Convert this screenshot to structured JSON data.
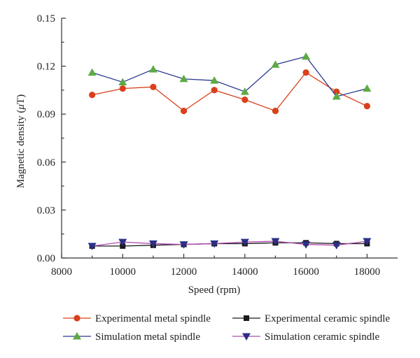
{
  "chart_data": {
    "type": "line",
    "xlabel": "Speed (rpm)",
    "ylabel_prefix": "Magnetic density (",
    "ylabel_unit_italic": "μ",
    "ylabel_suffix": "T)",
    "xlim": [
      8000,
      19000
    ],
    "ylim": [
      0,
      0.15
    ],
    "xticks": [
      8000,
      10000,
      12000,
      14000,
      16000,
      18000
    ],
    "xtick_labels": [
      "8000",
      "10000",
      "12000",
      "14000",
      "16000",
      "18000"
    ],
    "yticks": [
      0,
      0.03,
      0.06,
      0.09,
      0.12,
      0.15
    ],
    "ytick_labels": [
      "0.00",
      "0.03",
      "0.06",
      "0.09",
      "0.12",
      "0.15"
    ],
    "grid": false,
    "legend_position": "bottom",
    "x": [
      9000,
      10000,
      11000,
      12000,
      13000,
      14000,
      15000,
      16000,
      17000,
      18000
    ],
    "series": [
      {
        "name": "Experimental metal spindle",
        "color": "#d9401b",
        "marker": "circle",
        "values": [
          0.102,
          0.106,
          0.107,
          0.092,
          0.105,
          0.099,
          0.092,
          0.116,
          0.104,
          0.095
        ]
      },
      {
        "name": "Experimental ceramic spindle",
        "color": "#1a1a1a",
        "marker": "square",
        "values": [
          0.0075,
          0.0075,
          0.008,
          0.0085,
          0.009,
          0.009,
          0.0095,
          0.0095,
          0.009,
          0.009
        ]
      },
      {
        "name": "Simulation metal spindle",
        "color": "#5cab42",
        "line_color": "#2b3a8f",
        "marker": "triangle-up",
        "values": [
          0.116,
          0.11,
          0.118,
          0.112,
          0.111,
          0.104,
          0.121,
          0.126,
          0.101,
          0.106
        ]
      },
      {
        "name": "Simulation ceramic spindle",
        "color": "#2b2f86",
        "line_color": "#b04ab0",
        "marker": "triangle-down",
        "values": [
          0.0075,
          0.01,
          0.009,
          0.0085,
          0.009,
          0.01,
          0.0105,
          0.0085,
          0.008,
          0.0105
        ]
      }
    ]
  }
}
